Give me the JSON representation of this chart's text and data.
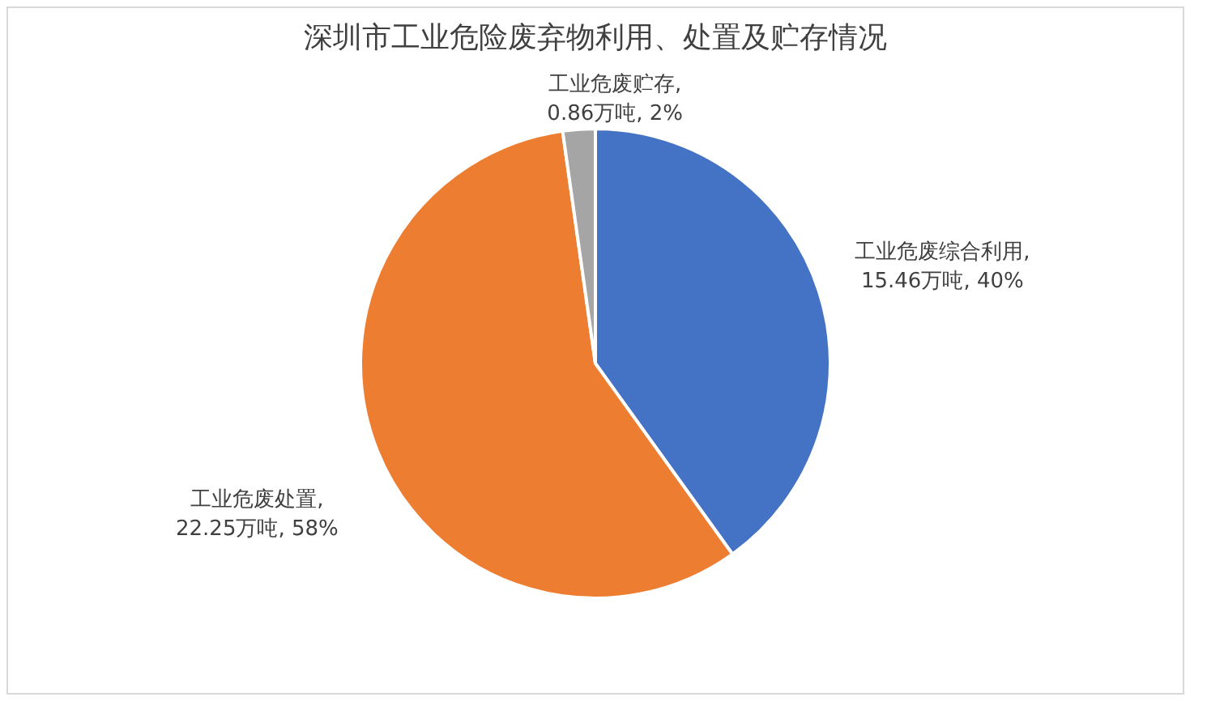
{
  "chart_data": {
    "type": "pie",
    "title": "深圳市工业危险废弃物利用、处置及贮存情况",
    "categories": [
      "工业危废综合利用",
      "工业危废处置",
      "工业危废贮存"
    ],
    "values": [
      15.46,
      22.25,
      0.86
    ],
    "colors": [
      "#4472c4",
      "#ed7d31",
      "#a5a5a5"
    ],
    "value_labels": [
      ", 15.46万吨, 40%",
      ", 22.25万吨, 58%",
      ", 0.86万吨, 2%"
    ],
    "legend": false
  }
}
